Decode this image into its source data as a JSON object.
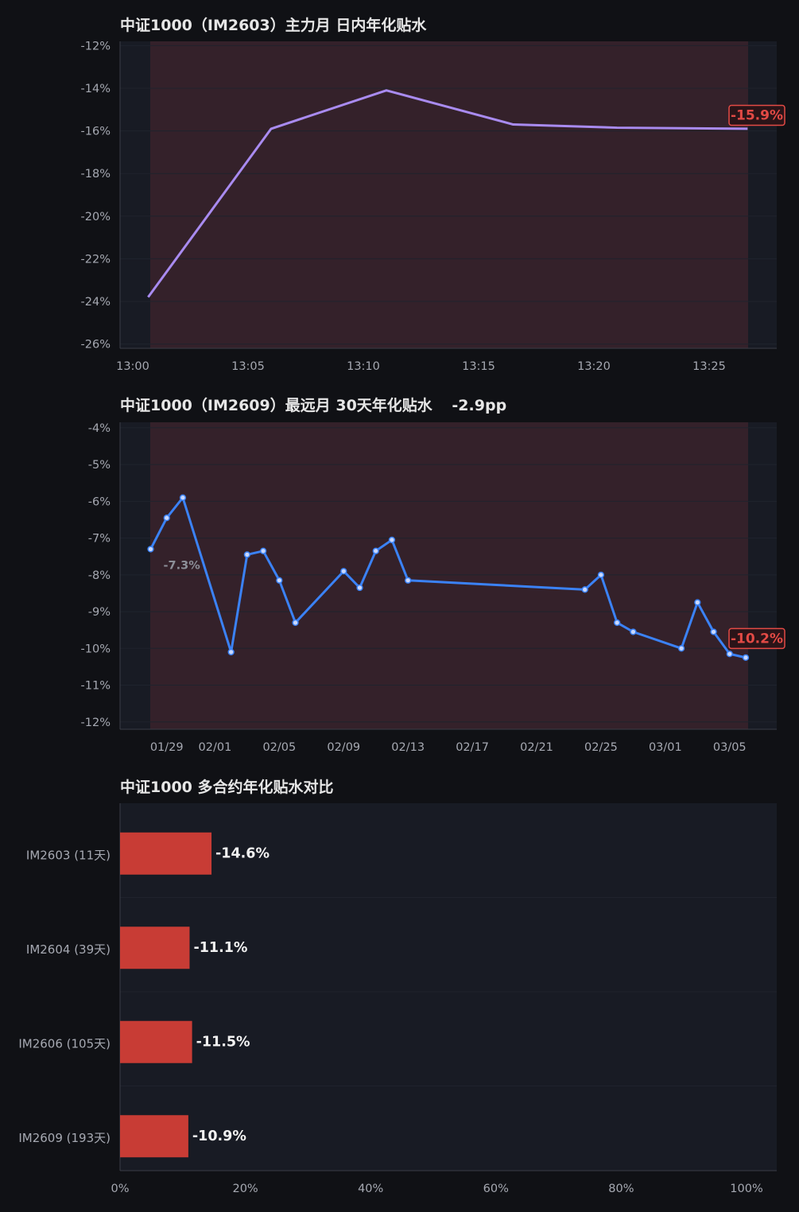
{
  "colors": {
    "page_bg": "#101115",
    "plot_bg": "#181b24",
    "band_fill": "#34212a",
    "intraday_line": "#a98bf0",
    "curve_line": "#3b82f6",
    "bar": "#c83c35",
    "tag": "#e34a45"
  },
  "chart_data": [
    {
      "type": "line",
      "title": "中证1000（IM2603）主力月 日内年化贴水",
      "x_ticks": [
        "13:00",
        "13:05",
        "13:10",
        "13:15",
        "13:20",
        "13:25"
      ],
      "y_ticks": [
        "-12%",
        "-14%",
        "-16%",
        "-18%",
        "-20%",
        "-22%",
        "-24%",
        "-26%"
      ],
      "ylim": [
        -26.2,
        -11.8
      ],
      "xlim": [
        "12:59",
        "13:28"
      ],
      "x": [
        "13:00:40",
        "13:06",
        "13:11",
        "13:16:30",
        "13:21",
        "13:26:40"
      ],
      "values": [
        -23.8,
        -15.9,
        -14.1,
        -15.7,
        -15.85,
        -15.9
      ],
      "last_label": "-15.9%",
      "grid": true,
      "shaded_band": true,
      "line_color": "intraday_line"
    },
    {
      "type": "line",
      "title": "中证1000（IM2609）最远月 30天年化贴水",
      "title_change": "-2.9pp",
      "x_ticks": [
        "01/29",
        "02/01",
        "02/05",
        "02/09",
        "02/13",
        "02/17",
        "02/21",
        "02/25",
        "03/01",
        "03/05"
      ],
      "y_ticks": [
        "-4%",
        "-5%",
        "-6%",
        "-7%",
        "-8%",
        "-9%",
        "-10%",
        "-11%",
        "-12%"
      ],
      "ylim": [
        -12.2,
        -3.85
      ],
      "x": [
        "01/28",
        "01/29",
        "01/30",
        "02/02",
        "02/03",
        "02/04",
        "02/05",
        "02/06",
        "02/09",
        "02/10",
        "02/11",
        "02/12",
        "02/13",
        "02/24",
        "02/25",
        "02/26",
        "02/27",
        "03/02",
        "03/03",
        "03/04",
        "03/05",
        "03/06"
      ],
      "values": [
        -7.3,
        -6.45,
        -5.9,
        -10.1,
        -7.45,
        -7.35,
        -8.15,
        -9.3,
        -7.9,
        -8.35,
        -7.35,
        -7.05,
        -8.15,
        -8.4,
        -8.0,
        -9.3,
        -9.55,
        -10.0,
        -8.75,
        -9.55,
        -10.15,
        -10.25
      ],
      "first_label": "-7.3%",
      "last_label": "-10.2%",
      "grid": true,
      "shaded_band": true,
      "line_color": "curve_line"
    },
    {
      "type": "bar",
      "orientation": "horizontal",
      "title": "中证1000 多合约年化贴水对比",
      "categories": [
        "IM2603 (11天)",
        "IM2604 (39天)",
        "IM2606 (105天)",
        "IM2609 (193天)"
      ],
      "values": [
        -14.6,
        -11.1,
        -11.5,
        -10.9
      ],
      "value_labels": [
        "-14.6%",
        "-11.1%",
        "-11.5%",
        "-10.9%"
      ],
      "x_ticks": [
        "0%",
        "20%",
        "40%",
        "60%",
        "80%",
        "100%"
      ],
      "xlim": [
        0,
        100
      ],
      "grid": true,
      "bar_color": "bar"
    }
  ]
}
